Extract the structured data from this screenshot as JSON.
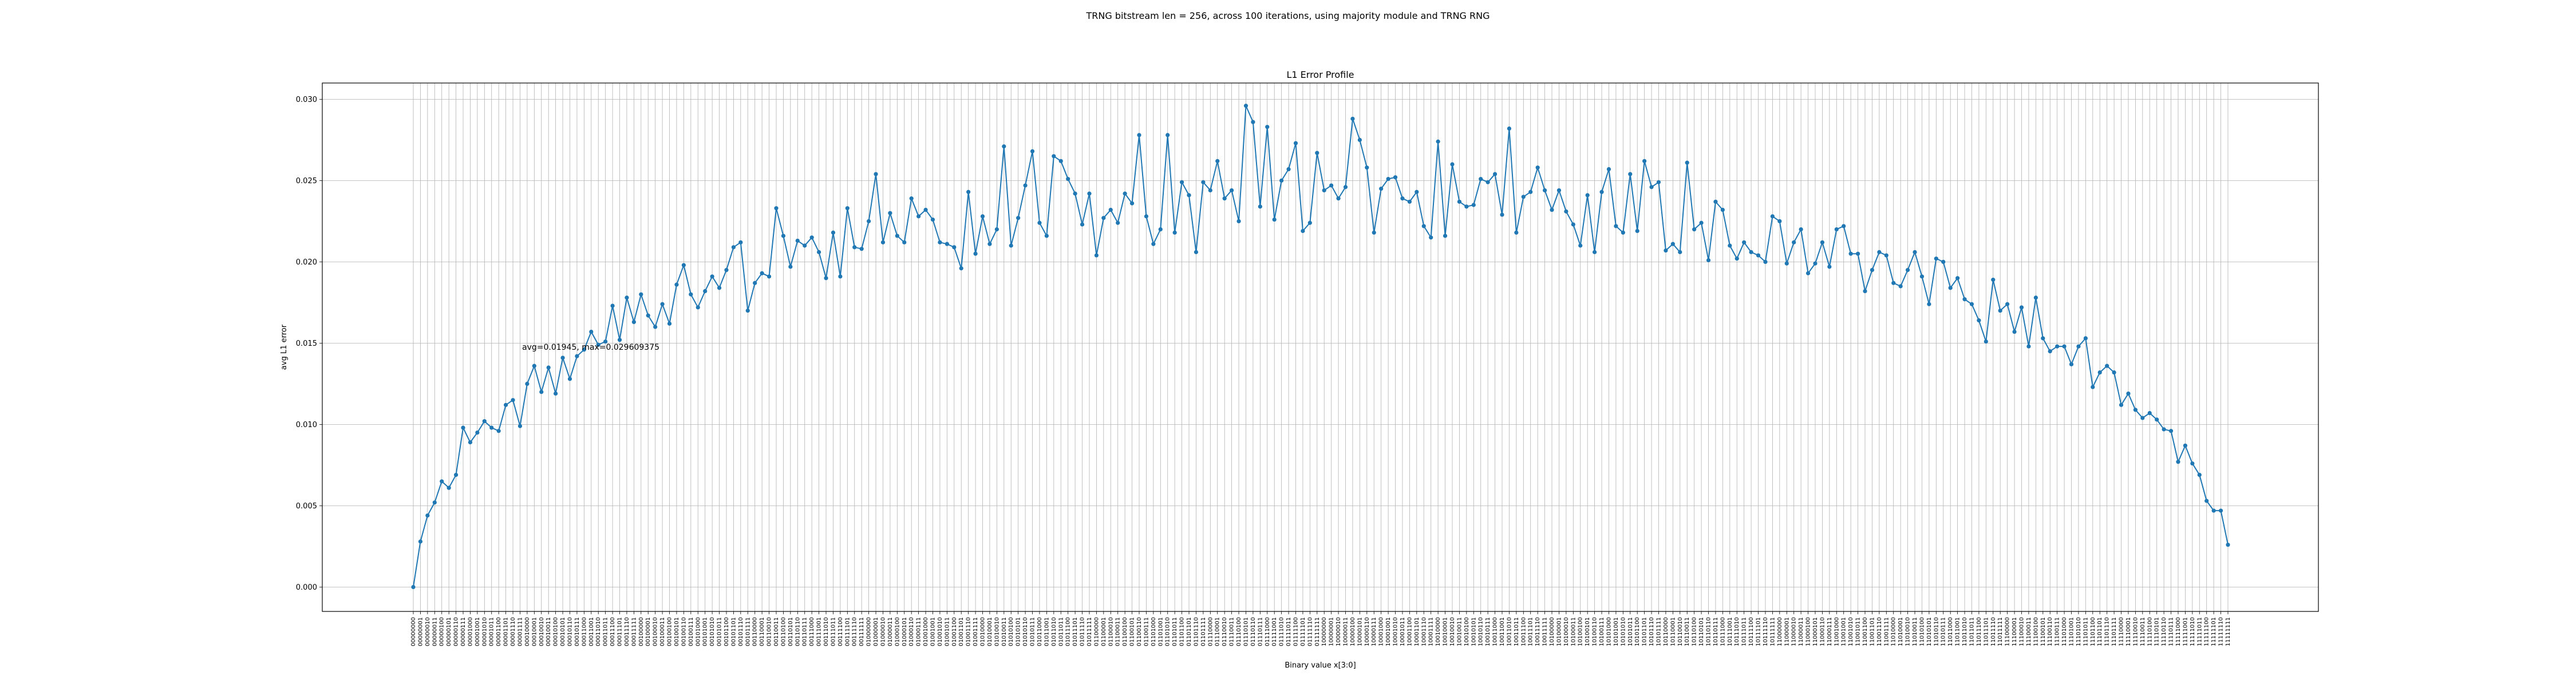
{
  "figure": {
    "suptitle": "TRNG bitstream len = 256, across 100 iterations, using majority module and TRNG RNG"
  },
  "chart_data": {
    "type": "line",
    "title": "L1 Error Profile",
    "xlabel": "Binary value x[3:0]",
    "ylabel": "avg L1 error",
    "annotation": "avg=0.01945, max=0.029609375",
    "categories_note": "00000000 ... 11111111 (all 256 8-bit binary values)",
    "x_count": 256,
    "ylim": [
      -0.0015,
      0.031
    ],
    "yticks": [
      0.0,
      0.005,
      0.01,
      0.015,
      0.02,
      0.025,
      0.03
    ],
    "ytick_labels": [
      "0.000",
      "0.005",
      "0.010",
      "0.015",
      "0.020",
      "0.025",
      "0.030"
    ],
    "grid": true,
    "series": [
      {
        "color": "#1f77b4",
        "values": [
          0.0,
          0.0028,
          0.0044,
          0.0052,
          0.0065,
          0.0061,
          0.0069,
          0.0098,
          0.0089,
          0.0095,
          0.0102,
          0.0098,
          0.0096,
          0.0112,
          0.0115,
          0.0099,
          0.0125,
          0.0136,
          0.012,
          0.0135,
          0.0119,
          0.0141,
          0.0128,
          0.0142,
          0.0146,
          0.0157,
          0.0149,
          0.0151,
          0.0173,
          0.0152,
          0.0178,
          0.0163,
          0.018,
          0.0167,
          0.016,
          0.0174,
          0.0162,
          0.0186,
          0.0198,
          0.018,
          0.0172,
          0.0182,
          0.0191,
          0.0184,
          0.0195,
          0.0209,
          0.0212,
          0.017,
          0.0187,
          0.0193,
          0.0191,
          0.0233,
          0.0216,
          0.0197,
          0.0213,
          0.021,
          0.0215,
          0.0206,
          0.019,
          0.0218,
          0.0191,
          0.0233,
          0.0209,
          0.0208,
          0.0225,
          0.0254,
          0.0212,
          0.023,
          0.0216,
          0.0212,
          0.0239,
          0.0228,
          0.0232,
          0.0226,
          0.0212,
          0.0211,
          0.0209,
          0.0196,
          0.0243,
          0.0205,
          0.0228,
          0.0211,
          0.022,
          0.0271,
          0.021,
          0.0227,
          0.0247,
          0.0268,
          0.0224,
          0.0216,
          0.0265,
          0.0262,
          0.0251,
          0.0242,
          0.0223,
          0.0242,
          0.0204,
          0.0227,
          0.0232,
          0.0224,
          0.0242,
          0.0236,
          0.0278,
          0.0228,
          0.0211,
          0.022,
          0.0278,
          0.0218,
          0.0249,
          0.0241,
          0.0206,
          0.0249,
          0.0244,
          0.0262,
          0.0239,
          0.0244,
          0.0225,
          0.0296,
          0.0286,
          0.0234,
          0.0283,
          0.0226,
          0.025,
          0.0257,
          0.0273,
          0.0219,
          0.0224,
          0.0267,
          0.0244,
          0.0247,
          0.0239,
          0.0246,
          0.0288,
          0.0275,
          0.0258,
          0.0218,
          0.0245,
          0.0251,
          0.0252,
          0.0239,
          0.0237,
          0.0243,
          0.0222,
          0.0215,
          0.0274,
          0.0216,
          0.026,
          0.0237,
          0.0234,
          0.0235,
          0.0251,
          0.0249,
          0.0254,
          0.0229,
          0.0282,
          0.0218,
          0.024,
          0.0243,
          0.0258,
          0.0244,
          0.0232,
          0.0244,
          0.0231,
          0.0223,
          0.021,
          0.0241,
          0.0206,
          0.0243,
          0.0257,
          0.0222,
          0.0218,
          0.0254,
          0.0219,
          0.0262,
          0.0246,
          0.0249,
          0.0207,
          0.0211,
          0.0206,
          0.0261,
          0.022,
          0.0224,
          0.0201,
          0.0237,
          0.0232,
          0.021,
          0.0202,
          0.0212,
          0.0206,
          0.0204,
          0.02,
          0.0228,
          0.0225,
          0.0199,
          0.0212,
          0.022,
          0.0193,
          0.0199,
          0.0212,
          0.0197,
          0.022,
          0.0222,
          0.0205,
          0.0205,
          0.0182,
          0.0195,
          0.0206,
          0.0204,
          0.0187,
          0.0185,
          0.0195,
          0.0206,
          0.0191,
          0.0174,
          0.0202,
          0.02,
          0.0184,
          0.019,
          0.0177,
          0.0174,
          0.0164,
          0.0151,
          0.0189,
          0.017,
          0.0174,
          0.0157,
          0.0172,
          0.0148,
          0.0178,
          0.0153,
          0.0145,
          0.0148,
          0.0148,
          0.0137,
          0.0148,
          0.0153,
          0.0123,
          0.0132,
          0.0136,
          0.0132,
          0.0112,
          0.0119,
          0.0109,
          0.0104,
          0.0107,
          0.0103,
          0.0097,
          0.0096,
          0.0077,
          0.0087,
          0.0076,
          0.0069,
          0.0053,
          0.0047,
          0.0047,
          0.0026
        ]
      }
    ]
  }
}
